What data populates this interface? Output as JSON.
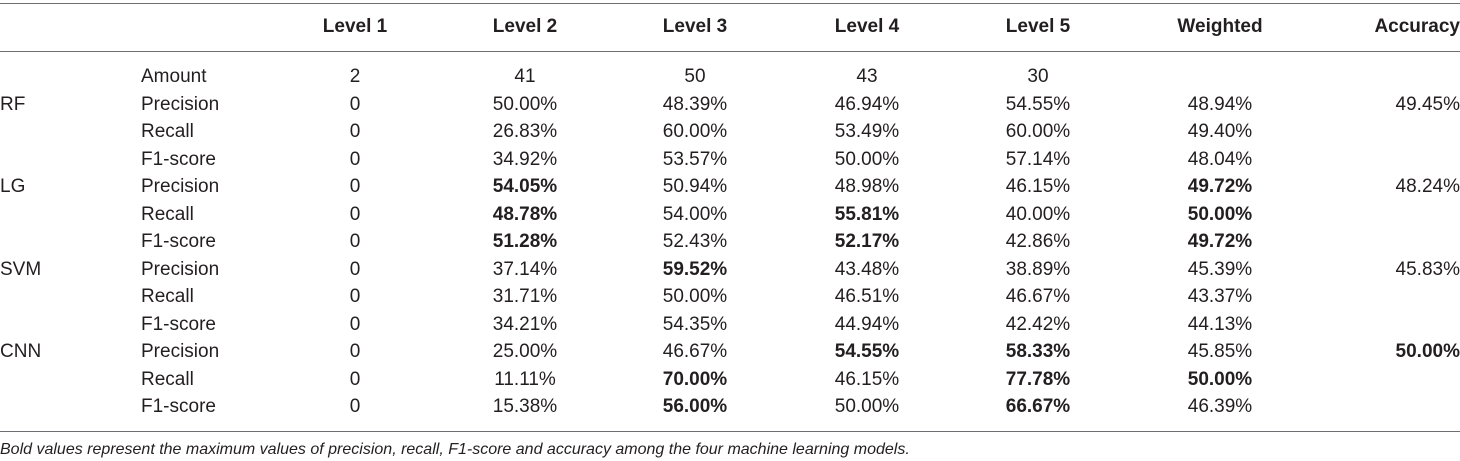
{
  "headers": [
    "",
    "",
    "Level 1",
    "Level 2",
    "Level 3",
    "Level 4",
    "Level 5",
    "Weighted",
    "Accuracy"
  ],
  "rows": [
    {
      "model": "",
      "metric": "Amount",
      "cells": [
        "2",
        "41",
        "50",
        "43",
        "30",
        "",
        ""
      ],
      "bold": []
    },
    {
      "model": "RF",
      "metric": "Precision",
      "cells": [
        "0",
        "50.00%",
        "48.39%",
        "46.94%",
        "54.55%",
        "48.94%",
        "49.45%"
      ],
      "bold": []
    },
    {
      "model": "",
      "metric": "Recall",
      "cells": [
        "0",
        "26.83%",
        "60.00%",
        "53.49%",
        "60.00%",
        "49.40%",
        ""
      ],
      "bold": []
    },
    {
      "model": "",
      "metric": "F1-score",
      "cells": [
        "0",
        "34.92%",
        "53.57%",
        "50.00%",
        "57.14%",
        "48.04%",
        ""
      ],
      "bold": []
    },
    {
      "model": "LG",
      "metric": "Precision",
      "cells": [
        "0",
        "54.05%",
        "50.94%",
        "48.98%",
        "46.15%",
        "49.72%",
        "48.24%"
      ],
      "bold": [
        1,
        5
      ]
    },
    {
      "model": "",
      "metric": "Recall",
      "cells": [
        "0",
        "48.78%",
        "54.00%",
        "55.81%",
        "40.00%",
        "50.00%",
        ""
      ],
      "bold": [
        1,
        3,
        5
      ]
    },
    {
      "model": "",
      "metric": "F1-score",
      "cells": [
        "0",
        "51.28%",
        "52.43%",
        "52.17%",
        "42.86%",
        "49.72%",
        ""
      ],
      "bold": [
        1,
        3,
        5
      ]
    },
    {
      "model": "SVM",
      "metric": "Precision",
      "cells": [
        "0",
        "37.14%",
        "59.52%",
        "43.48%",
        "38.89%",
        "45.39%",
        "45.83%"
      ],
      "bold": [
        2
      ]
    },
    {
      "model": "",
      "metric": "Recall",
      "cells": [
        "0",
        "31.71%",
        "50.00%",
        "46.51%",
        "46.67%",
        "43.37%",
        ""
      ],
      "bold": []
    },
    {
      "model": "",
      "metric": "F1-score",
      "cells": [
        "0",
        "34.21%",
        "54.35%",
        "44.94%",
        "42.42%",
        "44.13%",
        ""
      ],
      "bold": []
    },
    {
      "model": "CNN",
      "metric": "Precision",
      "cells": [
        "0",
        "25.00%",
        "46.67%",
        "54.55%",
        "58.33%",
        "45.85%",
        "50.00%"
      ],
      "bold": [
        3,
        4,
        6
      ]
    },
    {
      "model": "",
      "metric": "Recall",
      "cells": [
        "0",
        "11.11%",
        "70.00%",
        "46.15%",
        "77.78%",
        "50.00%",
        ""
      ],
      "bold": [
        2,
        4,
        5
      ]
    },
    {
      "model": "",
      "metric": "F1-score",
      "cells": [
        "0",
        "15.38%",
        "56.00%",
        "50.00%",
        "66.67%",
        "46.39%",
        ""
      ],
      "bold": [
        2,
        4
      ]
    }
  ],
  "footnote": "Bold values represent the maximum values of precision, recall, F1-score and accuracy among the four machine learning models."
}
